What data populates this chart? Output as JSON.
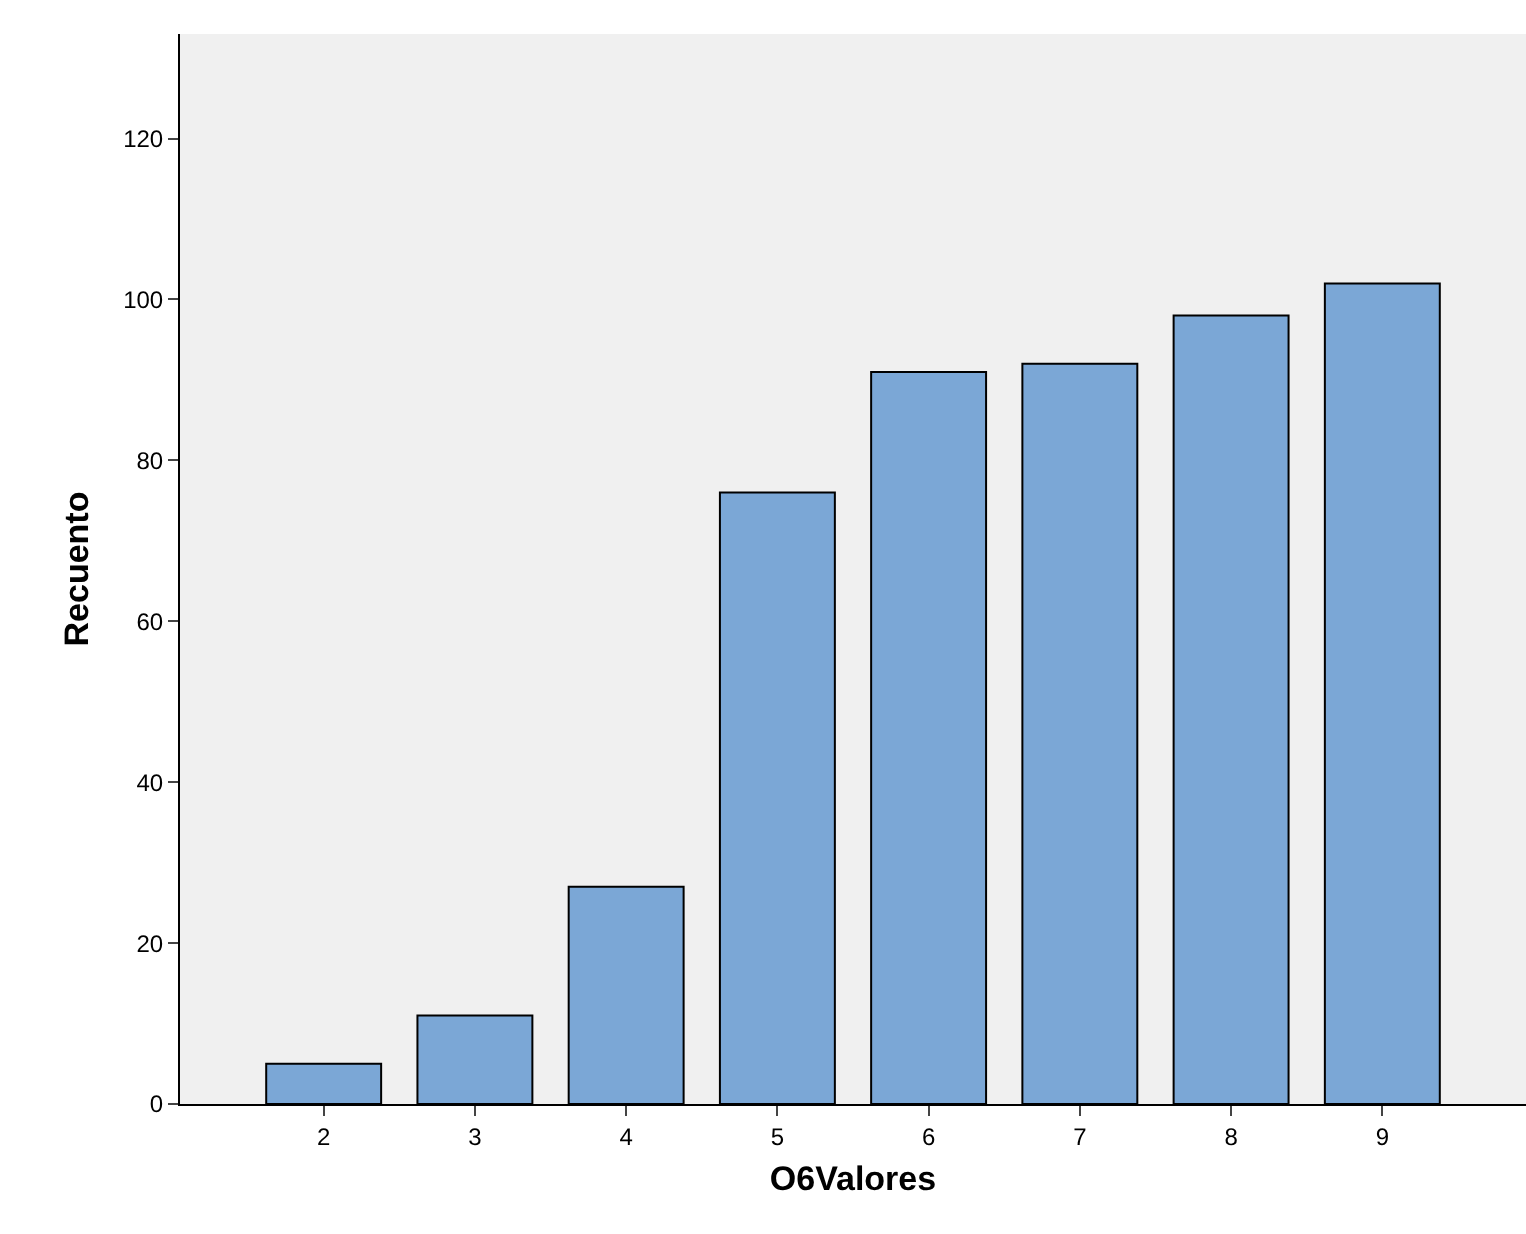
{
  "chart_data": {
    "type": "bar",
    "xlabel": "O6Valores",
    "ylabel": "Recuento",
    "categories": [
      "2",
      "3",
      "4",
      "5",
      "6",
      "7",
      "8",
      "9"
    ],
    "values": [
      5,
      11,
      27,
      76,
      91,
      92,
      98,
      102
    ],
    "color": "#7ba7d6",
    "ylim": [
      0,
      133
    ],
    "yticks": [
      0,
      20,
      40,
      60,
      80,
      100,
      120
    ],
    "grid": false,
    "legend": false
  }
}
